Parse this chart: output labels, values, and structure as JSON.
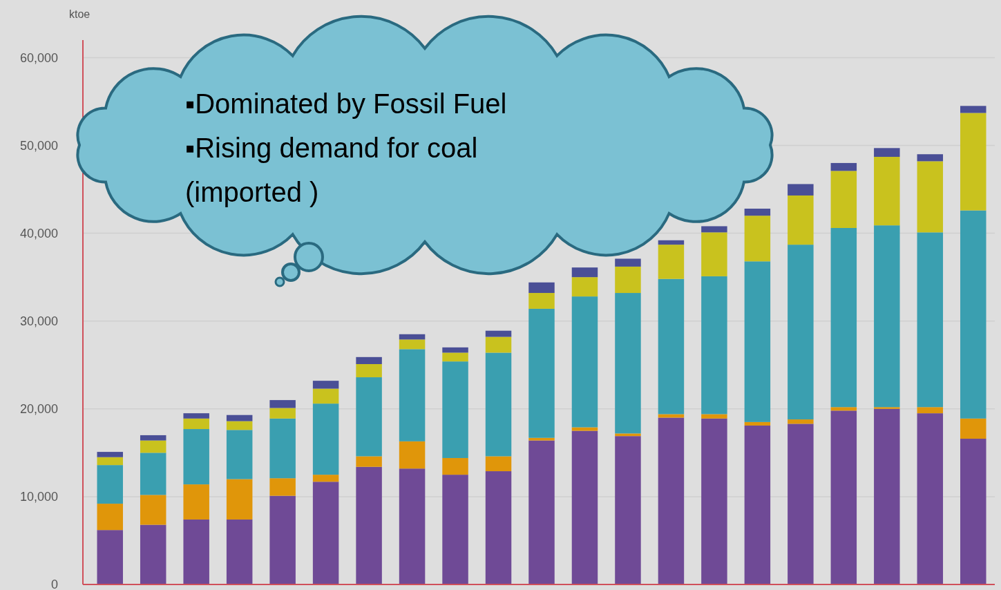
{
  "chart_data": {
    "type": "bar",
    "stacked": true,
    "ylabel": "ktoe",
    "categories": [
      null,
      null,
      null,
      null,
      null,
      null,
      null,
      null,
      null,
      null,
      null,
      null,
      null,
      null,
      null,
      null,
      null,
      null,
      null,
      null,
      null
    ],
    "series": [
      {
        "color": "#6f4a96",
        "values": [
          6200,
          6800,
          7400,
          7400,
          10100,
          11700,
          13400,
          13200,
          12500,
          12900,
          16400,
          17500,
          16900,
          19000,
          18900,
          18100,
          18300,
          19800,
          20000,
          19500,
          16600
        ]
      },
      {
        "color": "#e0960a",
        "values": [
          3000,
          3400,
          4000,
          4600,
          2000,
          800,
          1200,
          3100,
          1900,
          1700,
          300,
          400,
          300,
          400,
          500,
          400,
          500,
          400,
          200,
          700,
          2300
        ]
      },
      {
        "color": "#3a9fb0",
        "values": [
          4400,
          4800,
          6300,
          5600,
          6800,
          8100,
          9000,
          10500,
          11000,
          11800,
          14700,
          14900,
          16000,
          15400,
          15700,
          18300,
          19900,
          20400,
          20700,
          19900,
          23700
        ]
      },
      {
        "color": "#c9c21e",
        "values": [
          900,
          1400,
          1200,
          1000,
          1200,
          1700,
          1500,
          1100,
          1000,
          1800,
          1800,
          2200,
          3000,
          3900,
          5000,
          5200,
          5600,
          6500,
          7800,
          8100,
          11100
        ]
      },
      {
        "color": "#4a4f96",
        "values": [
          600,
          600,
          600,
          700,
          900,
          900,
          800,
          600,
          600,
          700,
          1200,
          1100,
          900,
          500,
          700,
          800,
          1300,
          900,
          1000,
          800,
          800
        ]
      }
    ],
    "ylim": [
      0,
      62000
    ],
    "yticks": [
      0,
      {
        "value": 10000,
        "label": "10,000"
      },
      {
        "value": 20000,
        "label": "20,000"
      },
      {
        "value": 30000,
        "label": "30,000"
      },
      {
        "value": 40000,
        "label": "40,000"
      },
      {
        "value": 50000,
        "label": "50,000"
      },
      {
        "value": 60000,
        "label": "60,000"
      }
    ],
    "grid": "y",
    "annotations": [
      "▪Dominated by Fossil Fuel",
      "▪Rising demand for coal (imported )"
    ]
  }
}
